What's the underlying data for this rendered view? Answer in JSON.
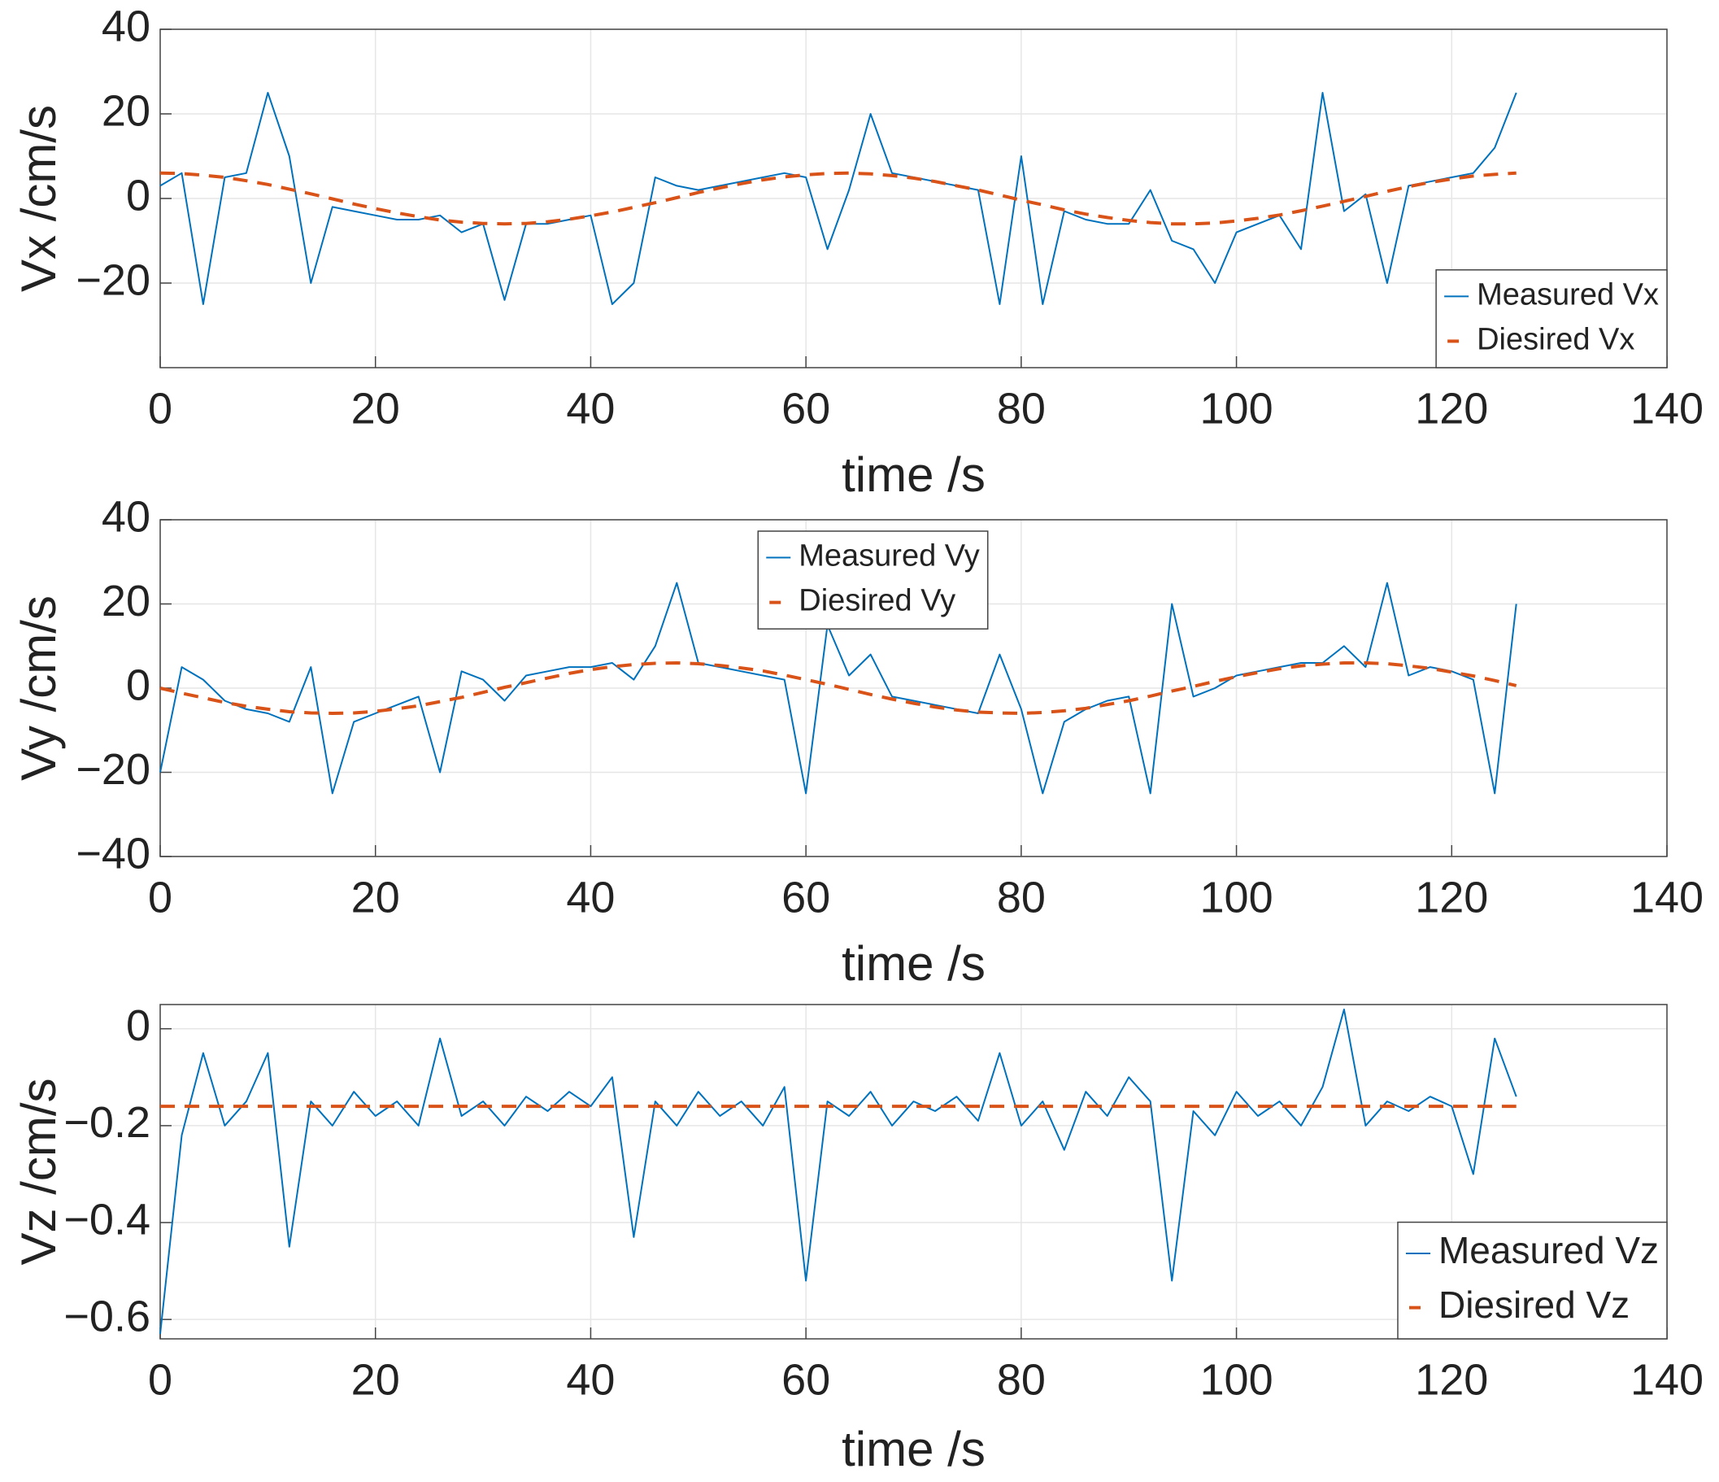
{
  "chart_data": [
    {
      "type": "line",
      "xlabel": "time /s",
      "ylabel": "Vx /cm/s",
      "grid": true,
      "legend": "lower right",
      "xlim": [
        0,
        140
      ],
      "xticks": [
        0,
        20,
        40,
        60,
        80,
        100,
        120,
        140
      ],
      "ylim": [
        -40,
        40
      ],
      "yticks": [
        {
          "value": -20,
          "label": "−20"
        },
        0,
        20,
        40
      ],
      "x": [
        0,
        2,
        4,
        6,
        8,
        10,
        12,
        14,
        16,
        18,
        20,
        22,
        24,
        26,
        28,
        30,
        32,
        34,
        36,
        38,
        40,
        42,
        44,
        46,
        48,
        50,
        52,
        54,
        56,
        58,
        60,
        62,
        64,
        66,
        68,
        70,
        72,
        74,
        76,
        78,
        80,
        82,
        84,
        86,
        88,
        90,
        92,
        94,
        96,
        98,
        100,
        102,
        104,
        106,
        108,
        110,
        112,
        114,
        116,
        118,
        120,
        122,
        124,
        126
      ],
      "series": [
        {
          "name": "Measured Vx",
          "color": "#0072bd",
          "linestyle": "solid",
          "values": [
            3,
            6,
            -25,
            5,
            6,
            25,
            10,
            -20,
            -2,
            -3,
            -4,
            -5,
            -5,
            -4,
            -8,
            -6,
            -24,
            -6,
            -6,
            -5,
            -4,
            -25,
            -20,
            5,
            3,
            2,
            3,
            4,
            5,
            6,
            5,
            -12,
            2,
            20,
            6,
            5,
            4,
            3,
            2,
            -25,
            10,
            -25,
            -3,
            -5,
            -6,
            -6,
            2,
            -10,
            -12,
            -20,
            -8,
            -6,
            -4,
            -12,
            25,
            -3,
            1,
            -20,
            3,
            4,
            5,
            6,
            12,
            25
          ]
        },
        {
          "name": "Diesired Vx",
          "color": "#d95319",
          "linestyle": "dashed",
          "values": [
            6.0,
            5.9,
            5.5,
            5.0,
            4.2,
            3.3,
            2.2,
            1.1,
            -0.1,
            -1.3,
            -2.4,
            -3.4,
            -4.3,
            -5.1,
            -5.6,
            -5.9,
            -6.0,
            -5.9,
            -5.5,
            -4.9,
            -4.1,
            -3.2,
            -2.1,
            -1.0,
            0.2,
            1.4,
            2.5,
            3.5,
            4.4,
            5.1,
            5.6,
            5.9,
            6.0,
            5.8,
            5.4,
            4.8,
            4.0,
            3.0,
            2.0,
            0.8,
            -0.4,
            -1.5,
            -2.7,
            -3.7,
            -4.5,
            -5.2,
            -5.7,
            -6.0,
            -6.0,
            -5.8,
            -5.3,
            -4.7,
            -3.9,
            -2.9,
            -1.8,
            -0.7,
            0.5,
            1.7,
            2.8,
            3.8,
            4.6,
            5.3,
            5.7,
            6.0
          ]
        }
      ]
    },
    {
      "type": "line",
      "xlabel": "time /s",
      "ylabel": "Vy /cm/s",
      "grid": true,
      "legend": "upper center",
      "xlim": [
        0,
        140
      ],
      "xticks": [
        0,
        20,
        40,
        60,
        80,
        100,
        120,
        140
      ],
      "ylim": [
        -40,
        40
      ],
      "yticks": [
        {
          "value": -40,
          "label": "−40"
        },
        {
          "value": -20,
          "label": "−20"
        },
        0,
        20,
        40
      ],
      "x": [
        0,
        2,
        4,
        6,
        8,
        10,
        12,
        14,
        16,
        18,
        20,
        22,
        24,
        26,
        28,
        30,
        32,
        34,
        36,
        38,
        40,
        42,
        44,
        46,
        48,
        50,
        52,
        54,
        56,
        58,
        60,
        62,
        64,
        66,
        68,
        70,
        72,
        74,
        76,
        78,
        80,
        82,
        84,
        86,
        88,
        90,
        92,
        94,
        96,
        98,
        100,
        102,
        104,
        106,
        108,
        110,
        112,
        114,
        116,
        118,
        120,
        122,
        124,
        126
      ],
      "series": [
        {
          "name": "Measured Vy",
          "color": "#0072bd",
          "linestyle": "solid",
          "values": [
            -20,
            5,
            2,
            -3,
            -5,
            -6,
            -8,
            5,
            -25,
            -8,
            -6,
            -4,
            -2,
            -20,
            4,
            2,
            -3,
            3,
            4,
            5,
            5,
            6,
            2,
            10,
            25,
            6,
            5,
            4,
            3,
            2,
            -25,
            15,
            3,
            8,
            -2,
            -3,
            -4,
            -5,
            -6,
            8,
            -5,
            -25,
            -8,
            -5,
            -3,
            -2,
            -25,
            20,
            -2,
            0,
            3,
            4,
            5,
            6,
            6,
            10,
            5,
            25,
            3,
            5,
            4,
            2,
            -25,
            20
          ]
        },
        {
          "name": "Diesired Vy",
          "color": "#d95319",
          "linestyle": "dashed",
          "values": [
            0,
            -1.2,
            -2.3,
            -3.4,
            -4.3,
            -5.0,
            -5.6,
            -5.9,
            -6.0,
            -5.9,
            -5.5,
            -4.9,
            -4.2,
            -3.2,
            -2.2,
            -1.0,
            0.2,
            1.3,
            2.4,
            3.5,
            4.4,
            5.1,
            5.6,
            5.9,
            6.0,
            5.8,
            5.4,
            4.8,
            4.1,
            3.1,
            2.0,
            0.9,
            -0.3,
            -1.5,
            -2.6,
            -3.6,
            -4.5,
            -5.2,
            -5.7,
            -5.9,
            -6.0,
            -5.8,
            -5.4,
            -4.8,
            -3.9,
            -3.0,
            -1.9,
            -0.7,
            0.4,
            1.6,
            2.7,
            3.7,
            4.6,
            5.3,
            5.7,
            6.0,
            6.0,
            5.8,
            5.3,
            4.7,
            3.8,
            2.9,
            1.8,
            0.6
          ]
        }
      ]
    },
    {
      "type": "line",
      "xlabel": "time /s",
      "ylabel": "Vz /cm/s",
      "grid": true,
      "legend": "lower right",
      "xlim": [
        0,
        140
      ],
      "xticks": [
        0,
        20,
        40,
        60,
        80,
        100,
        120,
        140
      ],
      "ylim": [
        -0.64,
        0.05
      ],
      "yticks": [
        {
          "value": -0.6,
          "label": "−0.6"
        },
        {
          "value": -0.4,
          "label": "−0.4"
        },
        {
          "value": -0.2,
          "label": "−0.2"
        },
        0
      ],
      "x": [
        0,
        2,
        4,
        6,
        8,
        10,
        12,
        14,
        16,
        18,
        20,
        22,
        24,
        26,
        28,
        30,
        32,
        34,
        36,
        38,
        40,
        42,
        44,
        46,
        48,
        50,
        52,
        54,
        56,
        58,
        60,
        62,
        64,
        66,
        68,
        70,
        72,
        74,
        76,
        78,
        80,
        82,
        84,
        86,
        88,
        90,
        92,
        94,
        96,
        98,
        100,
        102,
        104,
        106,
        108,
        110,
        112,
        114,
        116,
        118,
        120,
        122,
        124,
        126
      ],
      "series": [
        {
          "name": "Measured Vz",
          "color": "#0072bd",
          "linestyle": "solid",
          "values": [
            -0.63,
            -0.22,
            -0.05,
            -0.2,
            -0.15,
            -0.05,
            -0.45,
            -0.15,
            -0.2,
            -0.13,
            -0.18,
            -0.15,
            -0.2,
            -0.02,
            -0.18,
            -0.15,
            -0.2,
            -0.14,
            -0.17,
            -0.13,
            -0.16,
            -0.1,
            -0.43,
            -0.15,
            -0.2,
            -0.13,
            -0.18,
            -0.15,
            -0.2,
            -0.12,
            -0.52,
            -0.15,
            -0.18,
            -0.13,
            -0.2,
            -0.15,
            -0.17,
            -0.14,
            -0.19,
            -0.05,
            -0.2,
            -0.15,
            -0.25,
            -0.13,
            -0.18,
            -0.1,
            -0.15,
            -0.52,
            -0.17,
            -0.22,
            -0.13,
            -0.18,
            -0.15,
            -0.2,
            -0.12,
            0.04,
            -0.2,
            -0.15,
            -0.17,
            -0.14,
            -0.16,
            -0.3,
            -0.02,
            -0.14
          ]
        },
        {
          "name": "Diesired Vz",
          "color": "#d95319",
          "linestyle": "dashed",
          "values": [
            -0.16,
            -0.16,
            -0.16,
            -0.16,
            -0.16,
            -0.16,
            -0.16,
            -0.16,
            -0.16,
            -0.16,
            -0.16,
            -0.16,
            -0.16,
            -0.16,
            -0.16,
            -0.16,
            -0.16,
            -0.16,
            -0.16,
            -0.16,
            -0.16,
            -0.16,
            -0.16,
            -0.16,
            -0.16,
            -0.16,
            -0.16,
            -0.16,
            -0.16,
            -0.16,
            -0.16,
            -0.16,
            -0.16,
            -0.16,
            -0.16,
            -0.16,
            -0.16,
            -0.16,
            -0.16,
            -0.16,
            -0.16,
            -0.16,
            -0.16,
            -0.16,
            -0.16,
            -0.16,
            -0.16,
            -0.16,
            -0.16,
            -0.16,
            -0.16,
            -0.16,
            -0.16,
            -0.16,
            -0.16,
            -0.16,
            -0.16,
            -0.16,
            -0.16,
            -0.16,
            -0.16,
            -0.16,
            -0.16,
            -0.16
          ]
        }
      ]
    }
  ]
}
